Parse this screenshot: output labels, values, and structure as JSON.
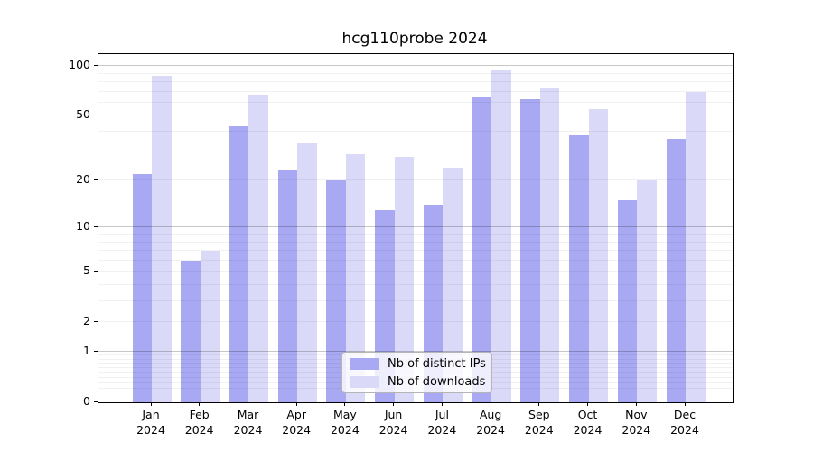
{
  "title": "hcg110probe 2024",
  "legend": {
    "entries": [
      {
        "label": "Nb of distinct IPs",
        "color": "#a9a9f3"
      },
      {
        "label": "Nb of downloads",
        "color": "#dadaf8"
      }
    ]
  },
  "chart_data": {
    "type": "bar",
    "title": "hcg110probe 2024",
    "categories": [
      "Jan",
      "Feb",
      "Mar",
      "Apr",
      "May",
      "Jun",
      "Jul",
      "Aug",
      "Sep",
      "Oct",
      "Nov",
      "Dec"
    ],
    "category_year": "2024",
    "series": [
      {
        "name": "Nb of distinct IPs",
        "color": "#a9a9f3",
        "values": [
          22,
          6,
          43,
          23,
          20,
          13,
          14,
          65,
          63,
          38,
          15,
          36
        ]
      },
      {
        "name": "Nb of downloads",
        "color": "#dadaf8",
        "values": [
          87,
          7,
          67,
          34,
          29,
          28,
          24,
          94,
          73,
          55,
          20,
          70
        ]
      }
    ],
    "yscale": "log1p",
    "y_ticks": [
      0,
      1,
      2,
      5,
      10,
      20,
      50,
      100
    ],
    "ylim": [
      0,
      118
    ],
    "xlabel": "",
    "ylabel": "",
    "grid": true,
    "grid_on_top_of_bars": true,
    "legend_position": "lower center",
    "axis_color": "#000000",
    "background_color": "#ffffff"
  }
}
